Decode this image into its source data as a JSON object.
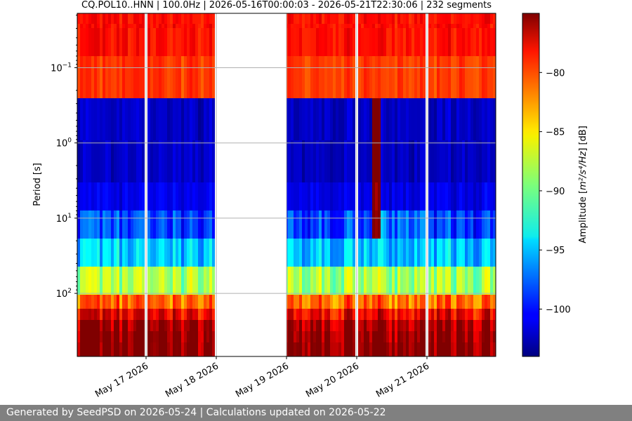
{
  "chart_data": {
    "type": "heatmap",
    "title": "CQ.POL10..HNN | 100.0Hz | 2026-05-16T00:00:03 - 2026-05-21T22:30:06 | 232 segments",
    "xlabel": "",
    "ylabel": "Period [s]",
    "yscale": "log",
    "ylim": [
      600,
      0.2
    ],
    "y_ticks": [
      {
        "value": 0.1,
        "base": "10",
        "exp": "−1"
      },
      {
        "value": 1,
        "base": "10",
        "exp": "0"
      },
      {
        "value": 10,
        "base": "10",
        "exp": "1"
      },
      {
        "value": 100,
        "base": "10",
        "exp": "2"
      }
    ],
    "x_range_days": [
      "2026-05-16",
      "2026-05-21T22:30"
    ],
    "x_ticks": [
      "May 17 2026",
      "May 18 2026",
      "May 19 2026",
      "May 20 2026",
      "May 21 2026"
    ],
    "grid": true,
    "colorbar": {
      "label_main": "Amplitude [",
      "label_math": "m²/s⁴/Hz",
      "label_tail": "] [dB]",
      "range": [
        -104,
        -75
      ],
      "ticks": [
        "−80",
        "−85",
        "−90",
        "−95",
        "−100"
      ],
      "tick_values": [
        -80,
        -85,
        -90,
        -95,
        -100
      ],
      "colormap": "jet"
    },
    "data_gaps": [
      {
        "start": "2026-05-16T23:50",
        "end": "2026-05-17T00:10"
      },
      {
        "start": "2026-05-17T23:55",
        "end": "2026-05-18T00:05"
      },
      {
        "start": "2026-05-18T00:00",
        "end": "2026-05-19T00:00"
      },
      {
        "start": "2026-05-19T23:50",
        "end": "2026-05-20T00:10"
      },
      {
        "start": "2026-05-20T23:50",
        "end": "2026-05-21T00:10"
      }
    ],
    "event": {
      "time": "2026-05-20T06:00",
      "period_range": [
        0.35,
        15
      ],
      "peak_db": -78
    }
  },
  "footer": {
    "text": "Generated by SeedPSD on 2026-05-24 | Calculations updated on 2026-05-22"
  },
  "colors": {
    "footer_bg": "#808080",
    "grid": "#b0b0b0"
  }
}
